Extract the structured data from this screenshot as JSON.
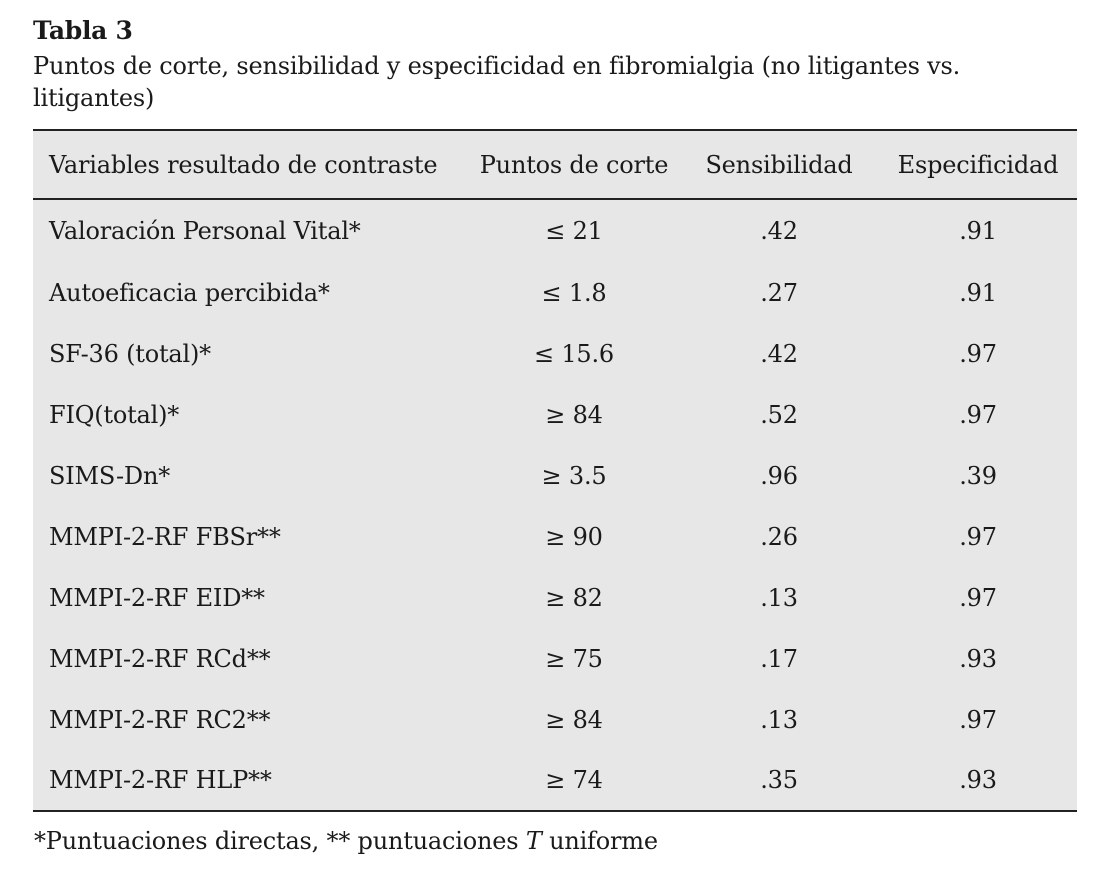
{
  "table_label": "Tabla 3",
  "caption": "Puntos de corte, sensibilidad y especificidad en fibromialgia (no litigantes vs. litigantes)",
  "columns": [
    "Variables resultado de contraste",
    "Puntos de corte",
    "Sensibilidad",
    "Especificidad"
  ],
  "rows": [
    {
      "variable": "Valoración Personal Vital*",
      "cutoff": "≤ 21",
      "sensitivity": ".42",
      "specificity": ".91"
    },
    {
      "variable": "Autoeficacia percibida*",
      "cutoff": "≤ 1.8",
      "sensitivity": ".27",
      "specificity": ".91"
    },
    {
      "variable": "SF-36 (total)*",
      "cutoff": "≤ 15.6",
      "sensitivity": ".42",
      "specificity": ".97"
    },
    {
      "variable": "FIQ(total)*",
      "cutoff": "≥ 84",
      "sensitivity": ".52",
      "specificity": ".97"
    },
    {
      "variable": "SIMS-Dn*",
      "cutoff": "≥ 3.5",
      "sensitivity": ".96",
      "specificity": ".39"
    },
    {
      "variable": "MMPI-2-RF FBSr**",
      "cutoff": "≥ 90",
      "sensitivity": ".26",
      "specificity": ".97"
    },
    {
      "variable": "MMPI-2-RF EID**",
      "cutoff": "≥ 82",
      "sensitivity": ".13",
      "specificity": ".97"
    },
    {
      "variable": "MMPI-2-RF RCd**",
      "cutoff": "≥ 75",
      "sensitivity": ".17",
      "specificity": ".93"
    },
    {
      "variable": "MMPI-2-RF RC2**",
      "cutoff": "≥ 84",
      "sensitivity": ".13",
      "specificity": ".97"
    },
    {
      "variable": "MMPI-2-RF HLP**",
      "cutoff": "≥ 74",
      "sensitivity": ".35",
      "specificity": ".93"
    }
  ],
  "note": {
    "before": "*Puntuaciones directas, ** puntuaciones ",
    "italic": "T",
    "after": " uniforme"
  }
}
